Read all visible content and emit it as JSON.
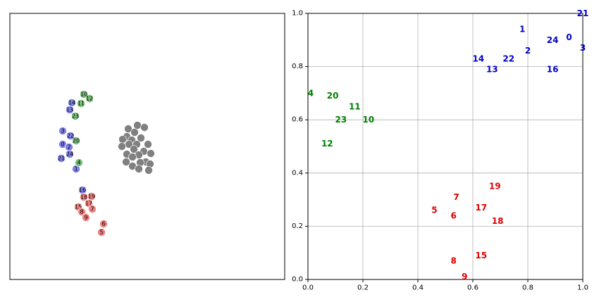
{
  "chart_data": [
    {
      "type": "scatter",
      "marker": "circle",
      "xlim": [
        0,
        390
      ],
      "ylim": [
        0,
        378
      ],
      "grid": false,
      "series": [
        {
          "color": "#7f7fe8",
          "labels": [
            "14",
            "13",
            "3",
            "22",
            "0",
            "2",
            "24",
            "21",
            "1",
            "16"
          ],
          "x": [
            88,
            85,
            75,
            86,
            75,
            84,
            85,
            73,
            94,
            103
          ],
          "y": [
            251,
            241,
            211,
            204,
            192,
            188,
            178,
            172,
            157,
            127
          ]
        },
        {
          "color": "#77c077",
          "labels": [
            "10",
            "12",
            "11",
            "23",
            "20",
            "4"
          ],
          "x": [
            105,
            113,
            101,
            93,
            94,
            98
          ],
          "y": [
            263,
            257,
            250,
            232,
            197,
            166
          ]
        },
        {
          "color": "#f08080",
          "labels": [
            "18",
            "19",
            "17",
            "15",
            "7",
            "8",
            "9",
            "6",
            "5"
          ],
          "x": [
            105,
            116,
            112,
            97,
            117,
            102,
            108,
            133,
            130
          ],
          "y": [
            117,
            118,
            108,
            103,
            100,
            96,
            88,
            79,
            67
          ]
        },
        {
          "color": "#808080",
          "x": [
            168,
            181,
            191,
            177,
            166,
            160,
            173,
            186,
            196,
            180,
            169,
            159,
            176,
            190,
            166,
            200,
            183,
            174,
            165,
            193,
            185,
            199,
            174,
            183,
            197
          ],
          "y": [
            214,
            219,
            216,
            209,
            203,
            199,
            198,
            201,
            192,
            192,
            192,
            189,
            185,
            182,
            178,
            179,
            177,
            174,
            167,
            167,
            166,
            164,
            161,
            157,
            155
          ]
        }
      ]
    },
    {
      "type": "scatter",
      "marker": "text",
      "xlim": [
        0,
        1
      ],
      "ylim": [
        0,
        1
      ],
      "grid": true,
      "xticks": [
        {
          "value": 0,
          "label": "0.0"
        },
        {
          "value": 0.2,
          "label": "0.2"
        },
        {
          "value": 0.4,
          "label": "0.4"
        },
        {
          "value": 0.6,
          "label": "0.6"
        },
        {
          "value": 0.8,
          "label": "0.8"
        },
        {
          "value": 1,
          "label": "1.0"
        }
      ],
      "yticks": [
        {
          "value": 0,
          "label": "0.0"
        },
        {
          "value": 0.2,
          "label": "0.2"
        },
        {
          "value": 0.4,
          "label": "0.4"
        },
        {
          "value": 0.6,
          "label": "0.6"
        },
        {
          "value": 0.8,
          "label": "0.8"
        },
        {
          "value": 1,
          "label": "1.0"
        }
      ],
      "series": [
        {
          "color": "#0000cc",
          "labels": [
            "21",
            "1",
            "24",
            "0",
            "3",
            "2",
            "22",
            "14",
            "13",
            "16"
          ],
          "x": [
            1.0,
            0.78,
            0.89,
            0.95,
            1.0,
            0.8,
            0.73,
            0.62,
            0.67,
            0.89
          ],
          "y": [
            1.0,
            0.94,
            0.9,
            0.91,
            0.87,
            0.86,
            0.83,
            0.83,
            0.79,
            0.79
          ]
        },
        {
          "color": "#008000",
          "labels": [
            "4",
            "20",
            "11",
            "23",
            "10",
            "12"
          ],
          "x": [
            0.01,
            0.09,
            0.17,
            0.12,
            0.22,
            0.07
          ],
          "y": [
            0.7,
            0.69,
            0.65,
            0.6,
            0.6,
            0.51
          ]
        },
        {
          "color": "#e00000",
          "labels": [
            "19",
            "7",
            "17",
            "5",
            "6",
            "18",
            "15",
            "8",
            "9"
          ],
          "x": [
            0.68,
            0.54,
            0.63,
            0.46,
            0.53,
            0.69,
            0.63,
            0.53,
            0.57
          ],
          "y": [
            0.35,
            0.31,
            0.27,
            0.26,
            0.24,
            0.22,
            0.09,
            0.07,
            0.01
          ]
        }
      ]
    }
  ]
}
